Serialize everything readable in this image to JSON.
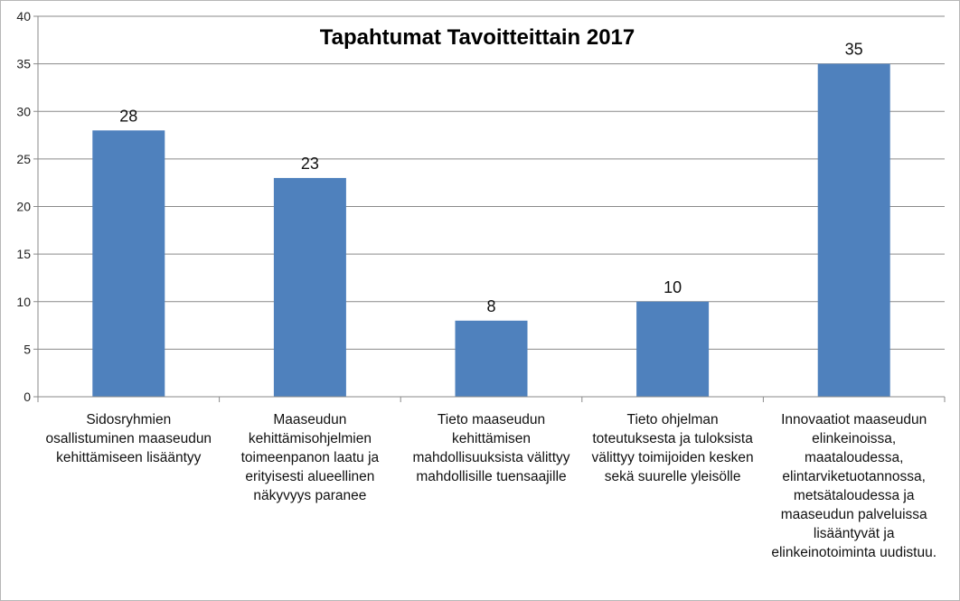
{
  "chart_data": {
    "type": "bar",
    "title": "Tapahtumat Tavoitteittain 2017",
    "xlabel": "",
    "ylabel": "",
    "ylim": [
      0,
      40
    ],
    "yticks": [
      "0",
      "5",
      "10",
      "15",
      "20",
      "25",
      "30",
      "35",
      "40"
    ],
    "grid": true,
    "legend": "none",
    "bar_color": "#4F81BD",
    "categories": [
      "Sidosryhmien osallistuminen maaseudun kehittämiseen lisääntyy",
      "Maaseudun kehittämisohjelmien toimeenpanon laatu ja erityisesti alueellinen näkyvyys paranee",
      "Tieto maaseudun kehittämisen mahdollisuuksista välittyy mahdollisille tuensaajille",
      "Tieto ohjelman toteutuksesta ja tuloksista välittyy toimijoiden kesken sekä suurelle yleisölle",
      "Innovaatiot maaseudun elinkeinoissa, maataloudessa, elintarviketuotannossa, metsätaloudessa ja maaseudun palveluissa lisääntyvät ja elinkeinotoiminta uudistuu."
    ],
    "values": [
      28,
      23,
      8,
      10,
      35
    ],
    "data_labels": [
      "28",
      "23",
      "8",
      "10",
      "35"
    ]
  }
}
